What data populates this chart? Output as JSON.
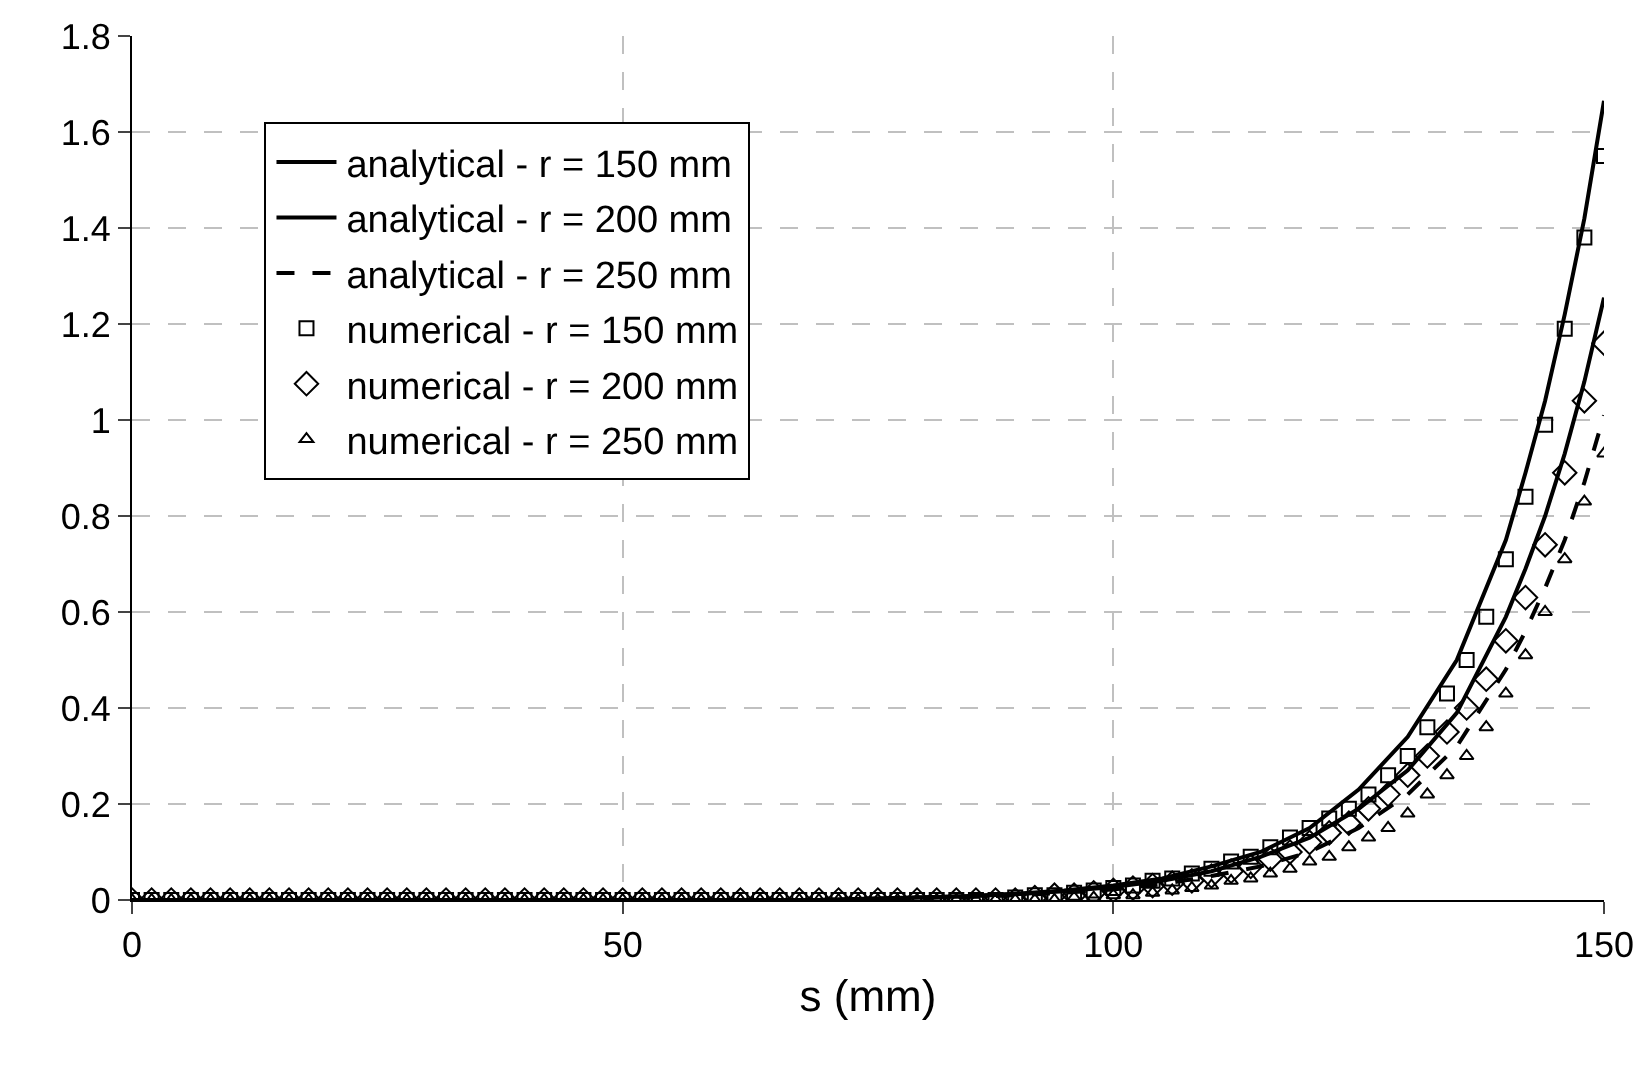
{
  "chart_data": {
    "type": "scatter",
    "xlabel": "s (mm)",
    "x": [
      0,
      2,
      4,
      6,
      8,
      10,
      12,
      14,
      16,
      18,
      20,
      22,
      24,
      26,
      28,
      30,
      32,
      34,
      36,
      38,
      40,
      42,
      44,
      46,
      48,
      50,
      52,
      54,
      56,
      58,
      60,
      62,
      64,
      66,
      68,
      70,
      72,
      74,
      76,
      78,
      80,
      82,
      84,
      86,
      88,
      90,
      92,
      94,
      96,
      98,
      100,
      102,
      104,
      106,
      108,
      110,
      112,
      114,
      116,
      118,
      120,
      122,
      124,
      126,
      128,
      130,
      132,
      134,
      136,
      138,
      140,
      142,
      144,
      146,
      148,
      150
    ],
    "xlim": [
      0,
      150
    ],
    "xticks": [
      0,
      50,
      100,
      150
    ],
    "ylim": [
      0,
      1.8
    ],
    "yticks": [
      0,
      0.2,
      0.4,
      0.6,
      0.8,
      1,
      1.2,
      1.4,
      1.6,
      1.8
    ],
    "grid": true,
    "legend": "top left",
    "series": [
      {
        "name": "analytical - r = 150 mm",
        "type": "line",
        "marker": "none",
        "line_style": "solid",
        "color": "#000000",
        "x": [
          0,
          50,
          70,
          80,
          85,
          90,
          95,
          100,
          105,
          110,
          115,
          120,
          125,
          130,
          135,
          140,
          142,
          144,
          146,
          148,
          150
        ],
        "values": [
          0,
          0,
          0,
          0.005,
          0.008,
          0.013,
          0.02,
          0.03,
          0.045,
          0.07,
          0.1,
          0.15,
          0.23,
          0.34,
          0.5,
          0.75,
          0.89,
          1.04,
          1.22,
          1.42,
          1.665
        ]
      },
      {
        "name": "analytical - r = 200 mm",
        "type": "line",
        "marker": "none",
        "line_style": "solid",
        "color": "#000000",
        "x": [
          0,
          50,
          70,
          80,
          85,
          90,
          95,
          100,
          105,
          110,
          115,
          120,
          125,
          130,
          135,
          140,
          142,
          144,
          146,
          148,
          150
        ],
        "values": [
          0,
          0,
          0,
          0.005,
          0.008,
          0.012,
          0.018,
          0.027,
          0.04,
          0.06,
          0.09,
          0.13,
          0.19,
          0.27,
          0.39,
          0.59,
          0.69,
          0.8,
          0.93,
          1.08,
          1.255
        ]
      },
      {
        "name": "analytical - r = 250 mm",
        "type": "line",
        "marker": "none",
        "line_style": "dashed",
        "color": "#000000",
        "x": [
          0,
          50,
          70,
          80,
          85,
          90,
          95,
          100,
          105,
          110,
          115,
          120,
          125,
          130,
          135,
          140,
          142,
          144,
          146,
          148,
          150
        ],
        "values": [
          0,
          0,
          0,
          0.004,
          0.006,
          0.01,
          0.015,
          0.022,
          0.033,
          0.05,
          0.07,
          0.1,
          0.15,
          0.22,
          0.32,
          0.48,
          0.56,
          0.65,
          0.75,
          0.87,
          1.01
        ]
      },
      {
        "name": "numerical - r = 150 mm",
        "type": "scatter",
        "marker": "square",
        "color": "#000000",
        "values": [
          0,
          0,
          0,
          0,
          0,
          0,
          0,
          0,
          0,
          0,
          0,
          0,
          0,
          0,
          0,
          0,
          0,
          0,
          0,
          0,
          0,
          0,
          0,
          0,
          0,
          0,
          0,
          0,
          0,
          0,
          0,
          0,
          0,
          0,
          0,
          0,
          0,
          0,
          0,
          0,
          0,
          0,
          0,
          0,
          0,
          0.005,
          0.01,
          0.01,
          0.015,
          0.02,
          0.025,
          0.03,
          0.04,
          0.045,
          0.055,
          0.065,
          0.08,
          0.09,
          0.11,
          0.13,
          0.15,
          0.17,
          0.19,
          0.22,
          0.26,
          0.3,
          0.36,
          0.43,
          0.5,
          0.59,
          0.71,
          0.84,
          0.99,
          1.19,
          1.38,
          1.55
        ]
      },
      {
        "name": "numerical - r = 200 mm",
        "type": "scatter",
        "marker": "diamond",
        "color": "#000000",
        "values": [
          0,
          0,
          0,
          0,
          0,
          0,
          0,
          0,
          0,
          0,
          0,
          0,
          0,
          0,
          0,
          0,
          0,
          0,
          0,
          0,
          0,
          0,
          0,
          0,
          0,
          0,
          0,
          0,
          0,
          0,
          0,
          0,
          0,
          0,
          0,
          0,
          0,
          0,
          0,
          0,
          0,
          0,
          0,
          0,
          0,
          0,
          0.005,
          0.01,
          0.01,
          0.015,
          0.02,
          0.025,
          0.03,
          0.035,
          0.04,
          0.05,
          0.06,
          0.07,
          0.085,
          0.1,
          0.12,
          0.14,
          0.16,
          0.19,
          0.22,
          0.26,
          0.3,
          0.35,
          0.4,
          0.46,
          0.54,
          0.63,
          0.74,
          0.89,
          1.04,
          1.16
        ]
      },
      {
        "name": "numerical - r = 250 mm",
        "type": "scatter",
        "marker": "triangle",
        "color": "#000000",
        "values": [
          0,
          0,
          0,
          0,
          0,
          0,
          0,
          0,
          0,
          0,
          0,
          0,
          0,
          0,
          0,
          0,
          0,
          0,
          0,
          0,
          0,
          0,
          0,
          0,
          0,
          0,
          0,
          0,
          0,
          0,
          0,
          0,
          0,
          0,
          0,
          0,
          0,
          0,
          0,
          0,
          0,
          0,
          0,
          0,
          0,
          0,
          0,
          0,
          0.005,
          0.005,
          0.01,
          0.01,
          0.015,
          0.02,
          0.025,
          0.03,
          0.04,
          0.045,
          0.055,
          0.065,
          0.08,
          0.09,
          0.11,
          0.13,
          0.15,
          0.18,
          0.22,
          0.26,
          0.3,
          0.36,
          0.43,
          0.51,
          0.6,
          0.71,
          0.83,
          0.93
        ]
      }
    ]
  }
}
